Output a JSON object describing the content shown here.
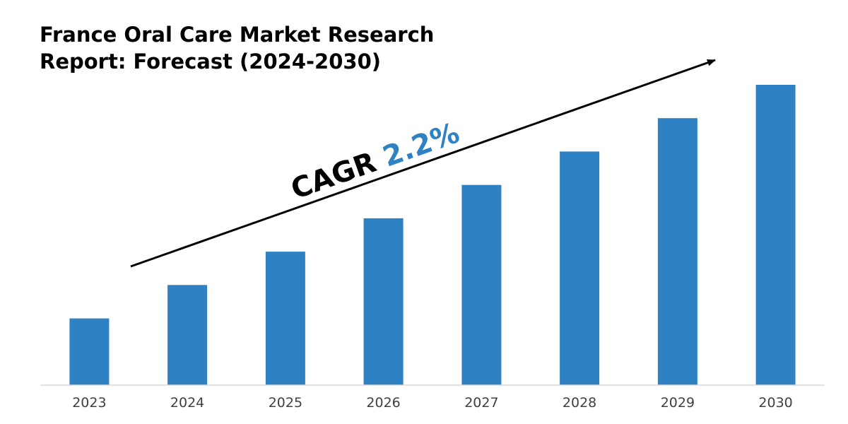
{
  "chart_data": {
    "type": "bar",
    "title": "France Oral Care Market Research Report: Forecast (2024-2030)",
    "xlabel": "",
    "ylabel": "",
    "categories": [
      "2023",
      "2024",
      "2025",
      "2026",
      "2027",
      "2028",
      "2029",
      "2030"
    ],
    "values": [
      1,
      1.5,
      2,
      2.5,
      3,
      3.5,
      4,
      4.5
    ],
    "ylim": [
      0,
      4.5
    ],
    "grid": false,
    "legend": "none",
    "bar_color": "#2E82C4",
    "annotation": {
      "prefix": "CAGR ",
      "value": "2.2%",
      "prefix_color": "#000000",
      "value_color": "#2E82C4"
    }
  }
}
